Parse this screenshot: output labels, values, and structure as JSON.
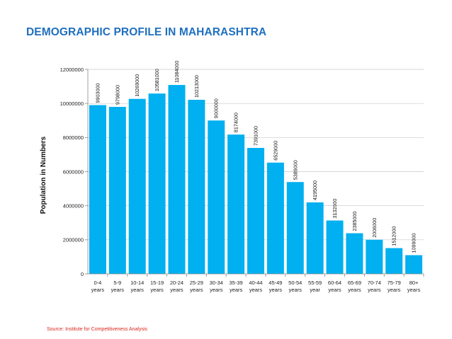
{
  "page": {
    "title": "DEMOGRAPHIC PROFILE IN MAHARASHTRA",
    "source": "Source: Institute for Competitiveness Analysis"
  },
  "chart_data": {
    "type": "bar",
    "title": "",
    "xlabel": "",
    "ylabel": "Population in Numbers",
    "ylim": [
      0,
      12000000
    ],
    "yticks": [
      0,
      2000000,
      4000000,
      6000000,
      8000000,
      10000000,
      12000000
    ],
    "grid": true,
    "bar_color": "#00b0f0",
    "categories": [
      [
        "0-4",
        "years"
      ],
      [
        "5-9",
        "years"
      ],
      [
        "10-14",
        "years"
      ],
      [
        "15-19",
        "years"
      ],
      [
        "20-24",
        "years"
      ],
      [
        "25-29",
        "years"
      ],
      [
        "30-34",
        "years"
      ],
      [
        "35-39",
        "years"
      ],
      [
        "40-44",
        "years"
      ],
      [
        "45-49",
        "years"
      ],
      [
        "50-54",
        "years"
      ],
      [
        "55-59",
        "year"
      ],
      [
        "60-64",
        "years"
      ],
      [
        "65-69",
        "years"
      ],
      [
        "70-74",
        "years"
      ],
      [
        "75-79",
        "years"
      ],
      [
        "80+",
        "years"
      ]
    ],
    "values": [
      9903000,
      9798000,
      10269000,
      10581000,
      11084000,
      10213000,
      9000000,
      8174000,
      7391000,
      6529000,
      5389000,
      4195000,
      3132000,
      2385000,
      2006000,
      1512000,
      1099000
    ],
    "data_labels": [
      "9903000",
      "9798000",
      "10269000",
      "10581000",
      "11084000",
      "10213000",
      "9000000",
      "8174000",
      "7391000",
      "6529000",
      "5389000",
      "4195000",
      "3132000",
      "2385000",
      "2006000",
      "1512000",
      "1099000"
    ]
  }
}
